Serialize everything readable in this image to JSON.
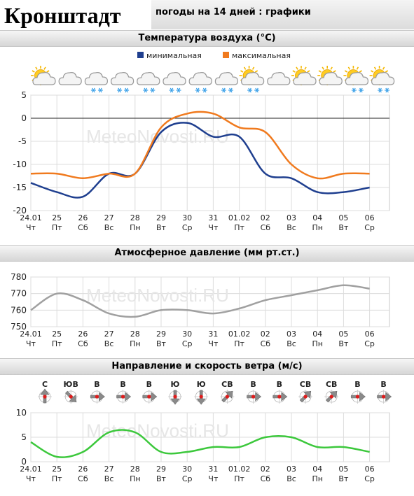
{
  "header": {
    "city": "Кронштадт",
    "page_title": "погоды на 14 дней : графики"
  },
  "watermark": "MeteoNovosti.RU",
  "x_axis": {
    "dates": [
      "24.01",
      "25",
      "26",
      "27",
      "28",
      "29",
      "30",
      "31",
      "01.02",
      "02",
      "03",
      "04",
      "05",
      "06"
    ],
    "weekdays": [
      "Чт",
      "Пт",
      "Сб",
      "Вс",
      "Пн",
      "Вт",
      "Ср",
      "Чт",
      "Пт",
      "Сб",
      "Вс",
      "Пн",
      "Вт",
      "Ср"
    ]
  },
  "weather_icons": [
    "sun-cloud",
    "cloud",
    "cloud-snow",
    "cloud-snow",
    "cloud-snow",
    "cloud-snow",
    "cloud-snow",
    "cloud-snow",
    "sun-cloud-snow",
    "cloud",
    "sun-cloud",
    "sun-cloud",
    "sun-cloud-snow",
    "sun-cloud-snow"
  ],
  "chart_data": [
    {
      "type": "line",
      "title": "Температура воздуха (°С)",
      "x": [
        "24.01",
        "25",
        "26",
        "27",
        "28",
        "29",
        "30",
        "31",
        "01.02",
        "02",
        "03",
        "04",
        "05",
        "06"
      ],
      "series": [
        {
          "name": "минимальная",
          "color": "#1f3f8f",
          "values": [
            -14,
            -16,
            -17,
            -12,
            -12,
            -3,
            -1,
            -4,
            -4,
            -12,
            -13,
            -16,
            -16,
            -15
          ]
        },
        {
          "name": "максимальная",
          "color": "#f07a1e",
          "values": [
            -12,
            -12,
            -13,
            -12,
            -12,
            -2,
            1,
            1,
            -2,
            -3,
            -10,
            -13,
            -12,
            -12
          ]
        }
      ],
      "ylim": [
        -20,
        5
      ],
      "yticks": [
        -20,
        -15,
        -10,
        -5,
        0,
        5
      ],
      "legend_position": "top-center",
      "grid": true
    },
    {
      "type": "line",
      "title": "Атмосферное давление (мм рт.ст.)",
      "x": [
        "24.01",
        "25",
        "26",
        "27",
        "28",
        "29",
        "30",
        "31",
        "01.02",
        "02",
        "03",
        "04",
        "05",
        "06"
      ],
      "series": [
        {
          "color": "#a0a0a0",
          "values": [
            760,
            770,
            766,
            758,
            756,
            760,
            760,
            758,
            761,
            766,
            769,
            772,
            775,
            773
          ]
        }
      ],
      "ylim": [
        750,
        780
      ],
      "yticks": [
        750,
        760,
        770,
        780
      ],
      "grid": true
    },
    {
      "type": "line",
      "title": "Направление и скорость ветра (м/с)",
      "x": [
        "24.01",
        "25",
        "26",
        "27",
        "28",
        "29",
        "30",
        "31",
        "01.02",
        "02",
        "03",
        "04",
        "05",
        "06"
      ],
      "series": [
        {
          "color": "#3cc83c",
          "values": [
            4,
            1,
            2,
            6,
            6,
            2,
            2,
            3,
            3,
            5,
            5,
            3,
            3,
            2
          ]
        }
      ],
      "ylim": [
        0,
        10
      ],
      "yticks": [
        0,
        5,
        10
      ],
      "wind_directions": [
        "С",
        "ЮВ",
        "В",
        "В",
        "В",
        "Ю",
        "Ю",
        "СВ",
        "В",
        "В",
        "СВ",
        "СВ",
        "В",
        "В"
      ],
      "grid": true
    }
  ]
}
